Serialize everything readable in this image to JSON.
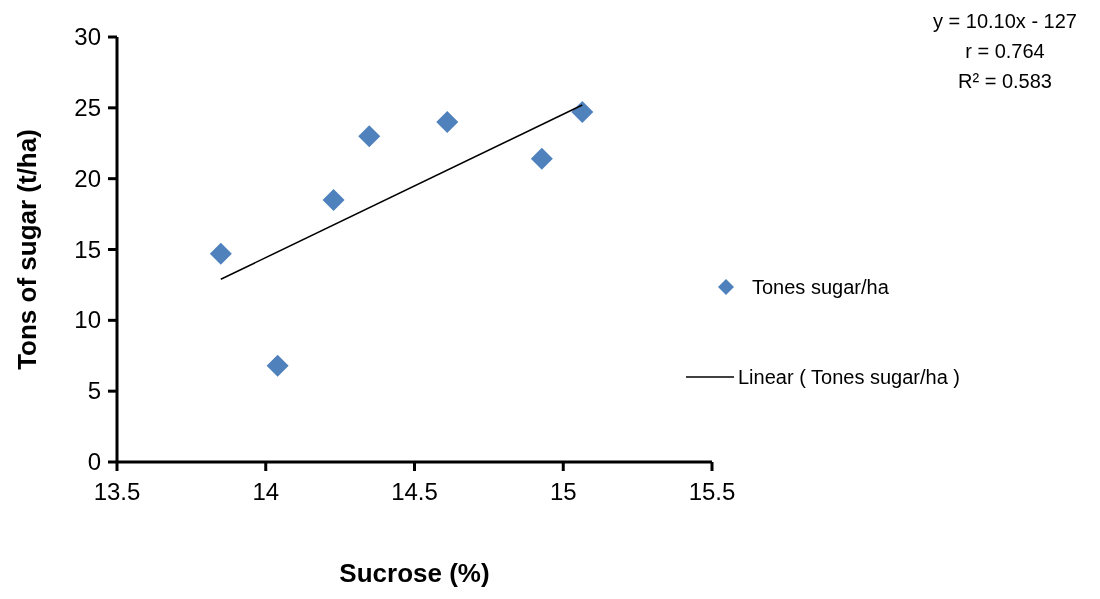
{
  "chart_data": {
    "type": "scatter",
    "xlabel": "Sucrose (%)",
    "ylabel": "Tons of sugar (t/ha)",
    "xlim": [
      13.5,
      15.5
    ],
    "xticks": [
      13.5,
      14,
      14.5,
      15,
      15.5
    ],
    "ylim": [
      0,
      30
    ],
    "yticks": [
      0,
      5,
      10,
      15,
      20,
      25,
      30
    ],
    "grid": false,
    "legend": "right",
    "marker": "diamond",
    "series": [
      {
        "name": "Tones sugar/ha",
        "color": "#4f81bd",
        "x": [
          13.849,
          14.04,
          14.228,
          14.348,
          14.61,
          14.928,
          15.064
        ],
        "values": [
          14.7,
          6.8,
          18.5,
          23.0,
          24.0,
          21.4,
          24.7
        ]
      },
      {
        "name": "Linear ( Tones sugar/ha )",
        "type": "line",
        "color": "#000000",
        "marker": "none",
        "line_style": "solid",
        "x": [
          13.849,
          15.064
        ],
        "values": [
          12.9,
          25.2
        ]
      }
    ],
    "annotations": [
      "y = 10.10x - 127",
      "r = 0.764",
      "R² = 0.583"
    ]
  }
}
